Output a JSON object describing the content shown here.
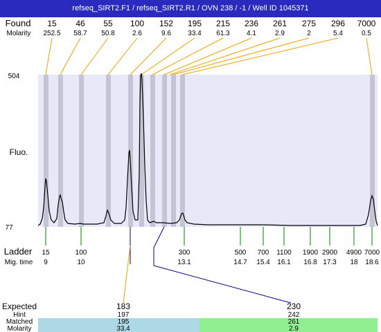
{
  "header": {
    "title": "refseq_SIRT2.F1 / refseq_SIRT2.R1 / OVN 238 / -1 / Well ID 1045371"
  },
  "labels": {
    "found": "Found",
    "molarity": "Molarity",
    "fluo": "Fluo.",
    "ladder": "Ladder",
    "mig_time": "Mig. time",
    "expected": "Expected",
    "hint": "Hint",
    "matched": "Matched",
    "molarity_row": "Molarity"
  },
  "colors": {
    "title_bar": "#2a2abf",
    "plot_bg": "#e8e8f8",
    "peak_band": "#c4c4d4",
    "callout_line": "#f0a000",
    "ladder_tick": "#008000",
    "expected_tick": "#000080",
    "match_1": "#add8e6",
    "match_2": "#90ee90"
  },
  "chart_data": {
    "type": "line",
    "y_axis": {
      "label": "Fluo.",
      "max": 504,
      "min": 77
    },
    "found_peaks": [
      {
        "size": "15",
        "molarity": "252.5"
      },
      {
        "size": "46",
        "molarity": "58.7"
      },
      {
        "size": "55",
        "molarity": "50.8"
      },
      {
        "size": "100",
        "molarity": "2.6"
      },
      {
        "size": "152",
        "molarity": "9.6"
      },
      {
        "size": "195",
        "molarity": "33.4"
      },
      {
        "size": "215",
        "molarity": "61.3"
      },
      {
        "size": "236",
        "molarity": "4.1"
      },
      {
        "size": "261",
        "molarity": "2.9"
      },
      {
        "size": "275",
        "molarity": "2"
      },
      {
        "size": "296",
        "molarity": "5.4"
      },
      {
        "size": "7000",
        "molarity": "0.5"
      }
    ],
    "ladder": [
      {
        "size": "15",
        "mig_time": "9"
      },
      {
        "size": "100",
        "mig_time": "10"
      },
      {
        "size": "300",
        "mig_time": "13.1"
      },
      {
        "size": "500",
        "mig_time": "14.7"
      },
      {
        "size": "700",
        "mig_time": "15.4"
      },
      {
        "size": "1100",
        "mig_time": "16.1"
      },
      {
        "size": "1900",
        "mig_time": "16.8"
      },
      {
        "size": "2900",
        "mig_time": "17.3"
      },
      {
        "size": "4900",
        "mig_time": "18"
      },
      {
        "size": "7000",
        "mig_time": "18.6"
      }
    ],
    "expected": [
      {
        "expected": "183",
        "hint": "197",
        "matched": "195",
        "molarity": "33.4"
      },
      {
        "expected": "230",
        "hint": "242",
        "matched": "261",
        "molarity": "2.9"
      }
    ]
  }
}
